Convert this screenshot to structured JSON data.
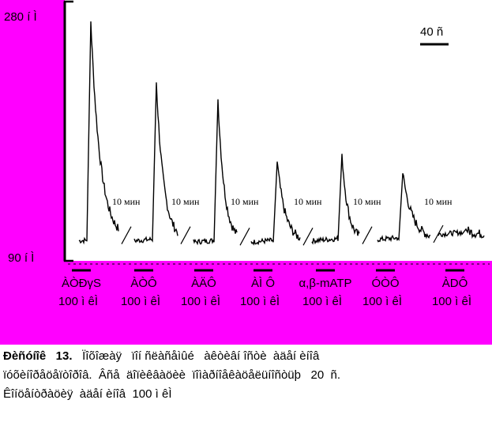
{
  "colors": {
    "background": "#ff00ff",
    "plot_area": "#ffffff",
    "trace": "#000000",
    "text": "#000000"
  },
  "chart_data": {
    "type": "line",
    "ylim": [
      90,
      280
    ],
    "y_top_label": "280 í Ì",
    "y_bottom_label": "90 í Ì",
    "scale_bar_label": "40 ñ",
    "interval_label": "10 мин",
    "series": [
      {
        "name": "ÀÒÐγS",
        "dose": "100 ì êÌ",
        "peak": 272,
        "baseline": 103
      },
      {
        "name": "ÀÒÔ",
        "dose": "100 ì êÌ",
        "peak": 225,
        "baseline": 103
      },
      {
        "name": "ÀÄÔ",
        "dose": "100 ì êÌ",
        "peak": 212,
        "baseline": 102
      },
      {
        "name": "ÀÌ Ô",
        "dose": "100 ì êÌ",
        "peak": 164,
        "baseline": 102
      },
      {
        "name": "α,β-mATP",
        "dose": "100 ì êÌ",
        "peak": 170,
        "baseline": 103
      },
      {
        "name": "ÓÒÔ",
        "dose": "100 ì êÌ",
        "peak": 155,
        "baseline": 104
      },
      {
        "name": "ÀDÔ",
        "dose": "100 ì êÌ",
        "peak": 112,
        "baseline": 108
      }
    ]
  },
  "caption": {
    "label": "Ðèñóíîê   13.",
    "line1": "Ïîõîæàÿ   ïîí ñëàñåìûé   àêòèâí îñòè  àäåí èíîâ",
    "line2": "ïóõèíîðåöåïòîðîâ.  Âñå  äîïèêâàöèè  ïîìàðíîåêàöåëüíîñòüþ   20  ñ.",
    "line3": "Êîíöåíòðàöèÿ  àäåí èíîâ  100 ì êÌ"
  }
}
